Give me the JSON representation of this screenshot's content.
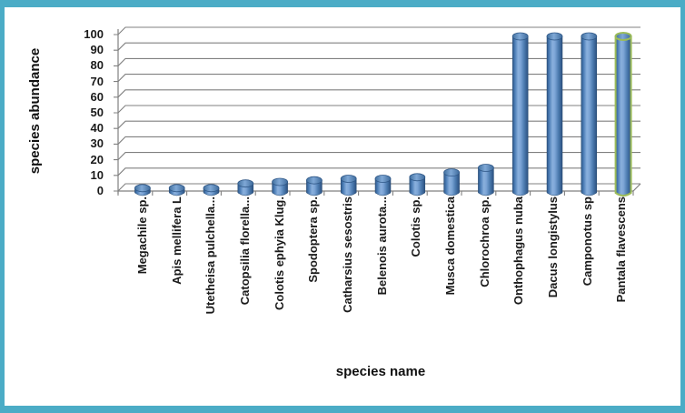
{
  "frame": {
    "border_color": "#4BACC6",
    "background": "#FFFFFF"
  },
  "chart_data": {
    "type": "bar",
    "bar_style": "3d-cylinder",
    "title": "",
    "xlabel": "species name",
    "ylabel": "species abundance",
    "categories": [
      "Megachile sp.",
      "Apis mellifera L",
      "Utetheisa pulchella...",
      "Catopsilia florella...",
      "Colotis ephyia Klug.",
      "Spodoptera sp.",
      "Catharsius sesostris",
      "Belenois aurota...",
      "Colotis sp.",
      "Musca domestica",
      "Chlorochroa sp.",
      "Onthophagus nuba",
      "Dacus longistylus",
      "Camponotus sp",
      "Pantala flavescens"
    ],
    "values": [
      3,
      3,
      3,
      6,
      7,
      8,
      9,
      9,
      10,
      13,
      16,
      100,
      100,
      100,
      100
    ],
    "ylim": [
      0,
      100
    ],
    "ytick_step": 10,
    "grid": true,
    "legend": false,
    "highlighted_index": 14,
    "colors": {
      "bar": "#4F81BD",
      "bar_edge": "#2E5687",
      "bar_light": "#8AB0DD",
      "grid": "#808080",
      "text": "#1A1A1A",
      "highlight_outline": "#9BBB59"
    }
  }
}
